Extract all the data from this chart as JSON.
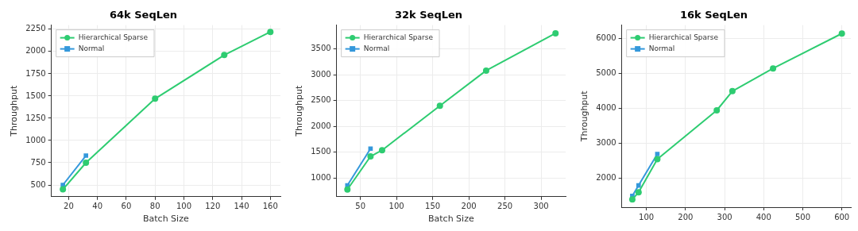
{
  "chart_data": [
    {
      "type": "line",
      "title": "64k SeqLen",
      "xlabel": "Batch Size",
      "ylabel": "Throughput",
      "xlim": [
        8,
        167
      ],
      "xticks": [
        20,
        40,
        60,
        80,
        100,
        120,
        140,
        160
      ],
      "ylim": [
        368,
        2297
      ],
      "yticks": [
        500,
        750,
        1000,
        1250,
        1500,
        1750,
        2000,
        2250
      ],
      "grid": true,
      "legend": "top left",
      "series": [
        {
          "name": "Hierarchical Sparse",
          "color": "#2ecc71",
          "marker": "circle",
          "x": [
            16,
            32,
            80,
            128,
            160
          ],
          "values": [
            450,
            750,
            1470,
            1960,
            2220
          ]
        },
        {
          "name": "Normal",
          "color": "#3498db",
          "marker": "square",
          "x": [
            16,
            32
          ],
          "values": [
            500,
            830
          ]
        }
      ]
    },
    {
      "type": "line",
      "title": "32k SeqLen",
      "xlabel": "Batch Size",
      "ylabel": "Throughput",
      "xlim": [
        17,
        334
      ],
      "xticks": [
        50,
        100,
        150,
        200,
        250,
        300
      ],
      "ylim": [
        641,
        3959
      ],
      "yticks": [
        1000,
        1500,
        2000,
        2500,
        3000,
        3500
      ],
      "grid": true,
      "legend": "top left",
      "series": [
        {
          "name": "Hierarchical Sparse",
          "color": "#2ecc71",
          "marker": "circle",
          "x": [
            32,
            64,
            80,
            160,
            224,
            320
          ],
          "values": [
            780,
            1420,
            1540,
            2400,
            3080,
            3800
          ]
        },
        {
          "name": "Normal",
          "color": "#3498db",
          "marker": "square",
          "x": [
            32,
            64
          ],
          "values": [
            860,
            1570
          ]
        }
      ]
    },
    {
      "type": "line",
      "title": "16k SeqLen",
      "ylabel": "Throughput",
      "xlim": [
        37,
        623
      ],
      "xticks": [
        100,
        200,
        300,
        400,
        500,
        600
      ],
      "ylim": [
        1176,
        6392
      ],
      "yticks": [
        2000,
        3000,
        4000,
        5000,
        6000
      ],
      "grid": true,
      "legend": "top left",
      "series": [
        {
          "name": "Hierarchical Sparse",
          "color": "#2ecc71",
          "marker": "circle",
          "x": [
            64,
            80,
            128,
            280,
            320,
            424,
            600
          ],
          "values": [
            1400,
            1600,
            2550,
            3950,
            4500,
            5150,
            6150
          ]
        },
        {
          "name": "Normal",
          "color": "#3498db",
          "marker": "square",
          "x": [
            64,
            80,
            128
          ],
          "values": [
            1500,
            1800,
            2700
          ]
        }
      ]
    }
  ]
}
